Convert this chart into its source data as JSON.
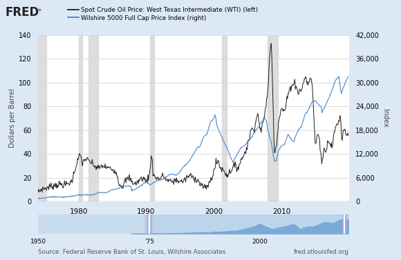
{
  "legend_oil": "Spot Crude Oil Price: West Texas Intermediate (WTI) (left)",
  "legend_wilshire": "Wilshire 5000 Full Cap Price Index (right)",
  "ylabel_left": "Dollars per Barrel",
  "ylabel_right": "Index",
  "ylim_left": [
    0,
    140
  ],
  "ylim_right": [
    0,
    42000
  ],
  "yticks_left": [
    0,
    20,
    40,
    60,
    80,
    100,
    120,
    140
  ],
  "yticks_right": [
    0,
    6000,
    12000,
    18000,
    24000,
    30000,
    36000,
    42000
  ],
  "bg_color": "#dce9f5",
  "plot_bg_color": "#ffffff",
  "oil_color": "#1a1a1a",
  "wilshire_color": "#4488cc",
  "recession_color": "#d8d8d8",
  "recession_alpha": 0.85,
  "recession_bands": [
    [
      1973.75,
      1975.17
    ],
    [
      1980.0,
      1980.5
    ],
    [
      1981.5,
      1982.9
    ],
    [
      1990.6,
      1991.2
    ],
    [
      2001.25,
      2001.92
    ],
    [
      2007.92,
      2009.5
    ]
  ],
  "source_text": "Source: Federal Reserve Bank of St. Louis, Wilshire Associates",
  "fred_text": "fred.stlouisfed.org",
  "xlim": [
    1974,
    2020
  ],
  "xticks": [
    1980,
    1990,
    2000,
    2010
  ],
  "mini_xlim": [
    1950,
    2020
  ],
  "mini_xticks": [
    1950,
    1975,
    2000
  ]
}
